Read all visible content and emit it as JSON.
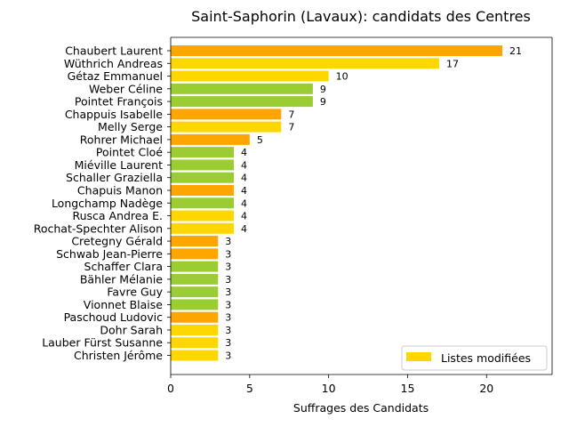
{
  "chart_data": {
    "type": "bar",
    "orientation": "horizontal",
    "title": "Saint-Saphorin (Lavaux): candidats des Centres",
    "xlabel": "Suffrages des Candidats",
    "ylabel": "",
    "xlim": [
      0,
      24.15
    ],
    "xticks": [
      0,
      5,
      10,
      15,
      20
    ],
    "grid": false,
    "legend_position": "lower-right",
    "legend": [
      {
        "label": "Listes modifiées",
        "color": "#ffd700"
      }
    ],
    "categories": [
      "Chaubert Laurent",
      "Wüthrich Andreas",
      "Gétaz Emmanuel",
      "Weber Céline",
      "Pointet François",
      "Chappuis Isabelle",
      "Melly Serge",
      "Rohrer Michael",
      "Pointet Cloé",
      "Miéville Laurent",
      "Schaller Graziella",
      "Chapuis Manon",
      "Longchamp Nadège",
      "Rusca Andrea E.",
      "Rochat-Spechter Alison",
      "Cretegny Gérald",
      "Schwab Jean-Pierre",
      "Schaffer Clara",
      "Bähler Mélanie",
      "Favre Guy",
      "Vionnet Blaise",
      "Paschoud Ludovic",
      "Dohr Sarah",
      "Lauber Fürst Susanne",
      "Christen Jérôme"
    ],
    "values": [
      21,
      17,
      10,
      9,
      9,
      7,
      7,
      5,
      4,
      4,
      4,
      4,
      4,
      4,
      4,
      3,
      3,
      3,
      3,
      3,
      3,
      3,
      3,
      3,
      3
    ],
    "colors": [
      "#ffa500",
      "#ffd700",
      "#ffd700",
      "#9acd32",
      "#9acd32",
      "#ffa500",
      "#ffd700",
      "#ffa500",
      "#9acd32",
      "#9acd32",
      "#9acd32",
      "#ffa500",
      "#9acd32",
      "#ffd700",
      "#ffd700",
      "#ffa500",
      "#ffa500",
      "#9acd32",
      "#9acd32",
      "#9acd32",
      "#9acd32",
      "#ffa500",
      "#ffd700",
      "#ffd700",
      "#ffd700"
    ]
  }
}
